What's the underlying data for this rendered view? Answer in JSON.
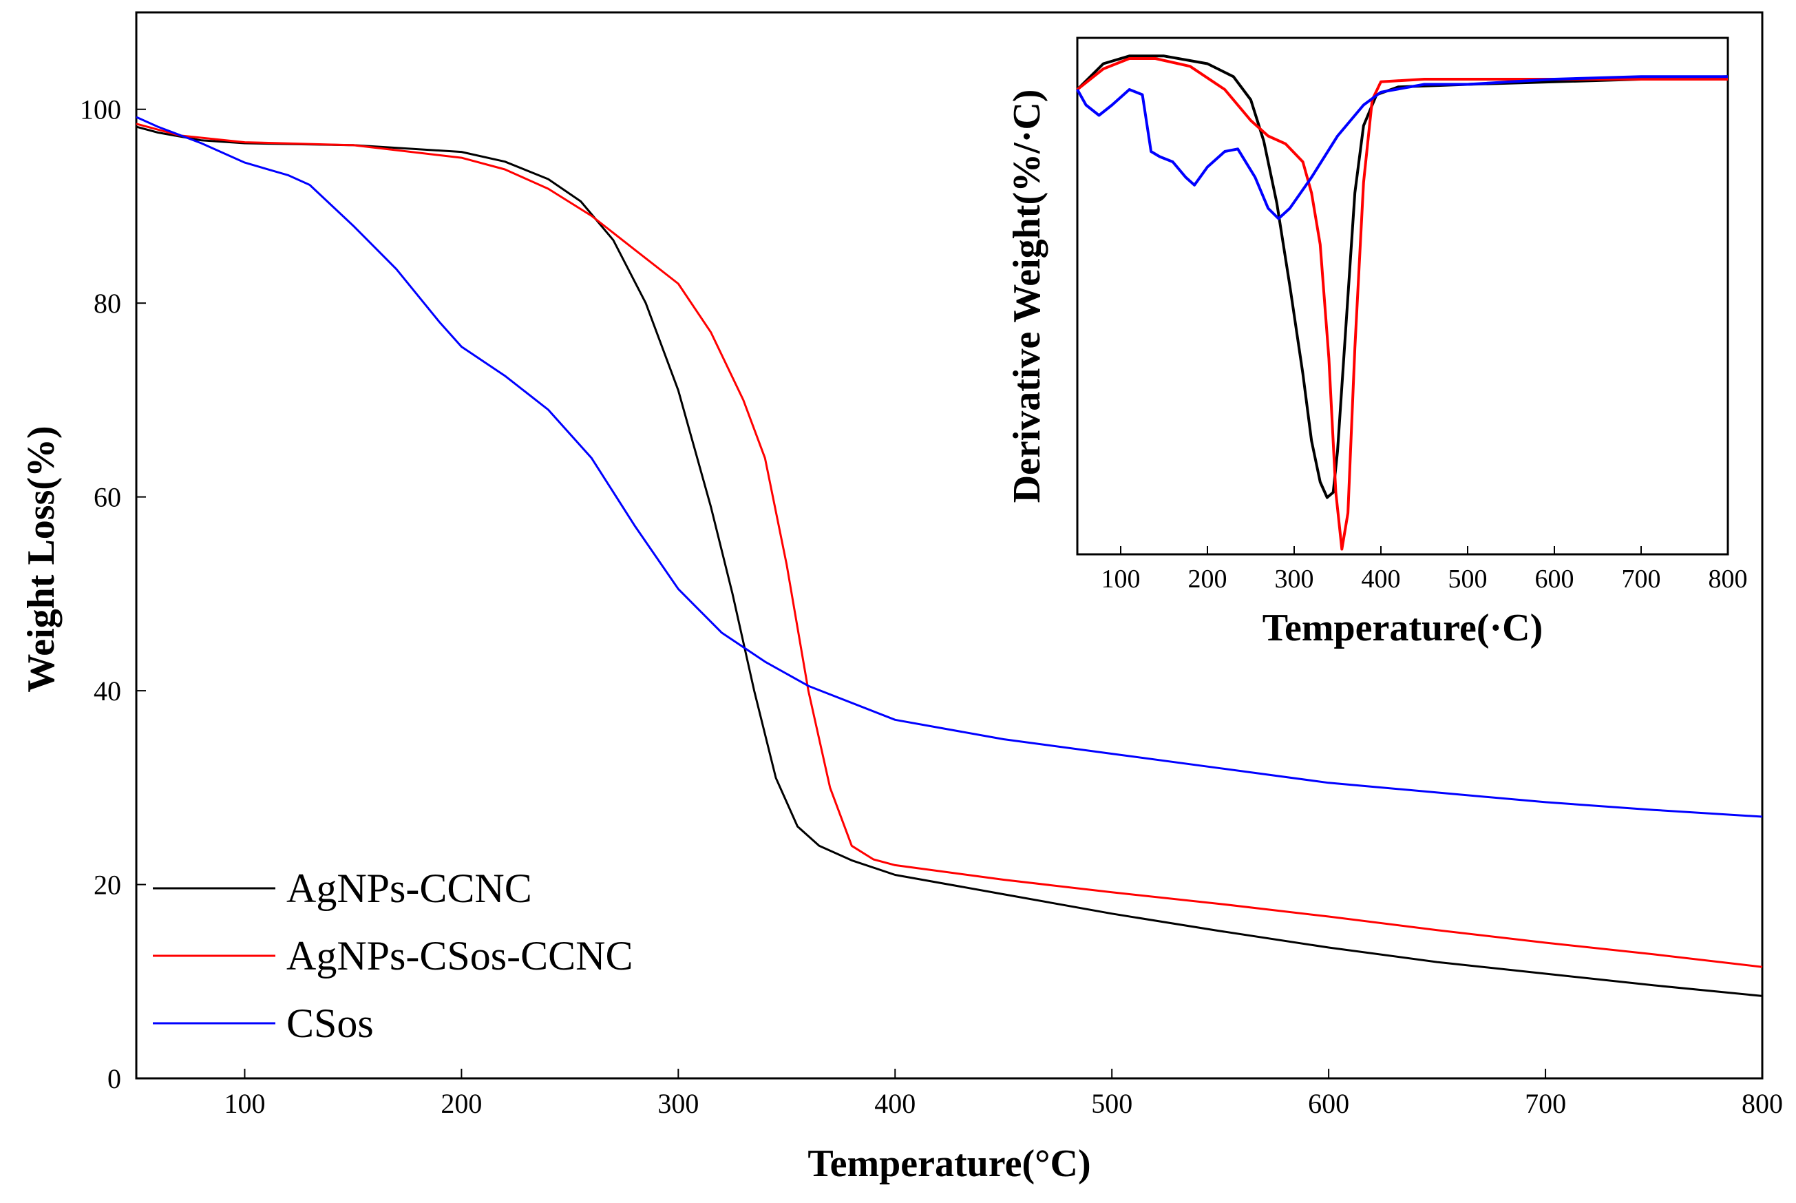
{
  "chart_data": [
    {
      "type": "line",
      "role": "main",
      "xlabel": "Temperature(°C)",
      "ylabel": "Weight Loss(%)",
      "xlim": [
        50,
        800
      ],
      "ylim": [
        0,
        110
      ],
      "xticks": [
        100,
        200,
        300,
        400,
        500,
        600,
        700,
        800
      ],
      "yticks": [
        0,
        20,
        40,
        60,
        80,
        100
      ],
      "legend_position": "bottom-left",
      "series": [
        {
          "name": "AgNPs-CCNC",
          "color": "#000000",
          "points": [
            [
              50,
              98.2
            ],
            [
              60,
              97.6
            ],
            [
              80,
              96.8
            ],
            [
              100,
              96.5
            ],
            [
              150,
              96.3
            ],
            [
              200,
              95.6
            ],
            [
              220,
              94.6
            ],
            [
              240,
              92.8
            ],
            [
              255,
              90.5
            ],
            [
              270,
              86.5
            ],
            [
              285,
              80
            ],
            [
              300,
              71
            ],
            [
              315,
              59
            ],
            [
              325,
              50
            ],
            [
              335,
              40
            ],
            [
              345,
              31
            ],
            [
              355,
              26
            ],
            [
              365,
              24
            ],
            [
              380,
              22.5
            ],
            [
              400,
              21
            ],
            [
              450,
              19
            ],
            [
              500,
              17
            ],
            [
              550,
              15.2
            ],
            [
              600,
              13.5
            ],
            [
              650,
              12
            ],
            [
              700,
              10.8
            ],
            [
              750,
              9.6
            ],
            [
              800,
              8.5
            ]
          ]
        },
        {
          "name": "AgNPs-CSos-CCNC",
          "color": "#ff0000",
          "points": [
            [
              50,
              98.5
            ],
            [
              70,
              97.3
            ],
            [
              100,
              96.6
            ],
            [
              150,
              96.3
            ],
            [
              200,
              95
            ],
            [
              220,
              93.8
            ],
            [
              240,
              91.8
            ],
            [
              260,
              89
            ],
            [
              280,
              85.5
            ],
            [
              300,
              82
            ],
            [
              315,
              77
            ],
            [
              330,
              70
            ],
            [
              340,
              64
            ],
            [
              350,
              53
            ],
            [
              360,
              40
            ],
            [
              370,
              30
            ],
            [
              380,
              24
            ],
            [
              390,
              22.6
            ],
            [
              400,
              22
            ],
            [
              450,
              20.5
            ],
            [
              500,
              19.2
            ],
            [
              550,
              18
            ],
            [
              600,
              16.7
            ],
            [
              650,
              15.3
            ],
            [
              700,
              14
            ],
            [
              750,
              12.8
            ],
            [
              800,
              11.5
            ]
          ]
        },
        {
          "name": "CSos",
          "color": "#0000ff",
          "points": [
            [
              50,
              99.2
            ],
            [
              60,
              98.2
            ],
            [
              80,
              96.5
            ],
            [
              100,
              94.5
            ],
            [
              120,
              93.2
            ],
            [
              130,
              92.2
            ],
            [
              150,
              88
            ],
            [
              170,
              83.5
            ],
            [
              190,
              78
            ],
            [
              200,
              75.5
            ],
            [
              220,
              72.5
            ],
            [
              240,
              69
            ],
            [
              260,
              64
            ],
            [
              280,
              57
            ],
            [
              300,
              50.5
            ],
            [
              320,
              46
            ],
            [
              340,
              43
            ],
            [
              360,
              40.5
            ],
            [
              400,
              37
            ],
            [
              450,
              35
            ],
            [
              500,
              33.5
            ],
            [
              550,
              32
            ],
            [
              600,
              30.5
            ],
            [
              650,
              29.5
            ],
            [
              700,
              28.5
            ],
            [
              750,
              27.7
            ],
            [
              800,
              27
            ]
          ]
        }
      ]
    },
    {
      "type": "line",
      "role": "inset",
      "xlabel": "Temperature(·C)",
      "ylabel": "Derivative Weight(%/·C)",
      "xlim": [
        50,
        800
      ],
      "ylim": [
        0,
        100
      ],
      "xticks": [
        100,
        200,
        300,
        400,
        500,
        600,
        700,
        800
      ],
      "yticks": [],
      "series": [
        {
          "name": "AgNPs-CCNC",
          "color": "#000000",
          "points": [
            [
              50,
              90
            ],
            [
              80,
              95
            ],
            [
              110,
              96.5
            ],
            [
              150,
              96.5
            ],
            [
              200,
              95
            ],
            [
              230,
              92.5
            ],
            [
              250,
              88
            ],
            [
              265,
              80
            ],
            [
              280,
              68
            ],
            [
              295,
              52
            ],
            [
              310,
              35
            ],
            [
              320,
              22
            ],
            [
              330,
              14
            ],
            [
              338,
              11
            ],
            [
              345,
              12
            ],
            [
              350,
              20
            ],
            [
              360,
              45
            ],
            [
              370,
              70
            ],
            [
              380,
              83
            ],
            [
              395,
              89
            ],
            [
              420,
              90.5
            ],
            [
              500,
              91
            ],
            [
              600,
              91.5
            ],
            [
              700,
              92
            ],
            [
              800,
              92.5
            ]
          ]
        },
        {
          "name": "AgNPs-CSos-CCNC",
          "color": "#ff0000",
          "points": [
            [
              50,
              90
            ],
            [
              80,
              94
            ],
            [
              110,
              96
            ],
            [
              140,
              96
            ],
            [
              180,
              94.5
            ],
            [
              220,
              90
            ],
            [
              250,
              84
            ],
            [
              270,
              81
            ],
            [
              290,
              79.5
            ],
            [
              310,
              76
            ],
            [
              320,
              70
            ],
            [
              330,
              60
            ],
            [
              340,
              38
            ],
            [
              348,
              12
            ],
            [
              355,
              1
            ],
            [
              362,
              8
            ],
            [
              370,
              40
            ],
            [
              380,
              72
            ],
            [
              390,
              88
            ],
            [
              400,
              91.5
            ],
            [
              450,
              92
            ],
            [
              600,
              92
            ],
            [
              800,
              92
            ]
          ]
        },
        {
          "name": "CSos",
          "color": "#0000ff",
          "points": [
            [
              50,
              90
            ],
            [
              60,
              87
            ],
            [
              75,
              85
            ],
            [
              90,
              87
            ],
            [
              110,
              90
            ],
            [
              125,
              89
            ],
            [
              135,
              78
            ],
            [
              145,
              77
            ],
            [
              160,
              76
            ],
            [
              175,
              73
            ],
            [
              185,
              71.5
            ],
            [
              200,
              75
            ],
            [
              220,
              78
            ],
            [
              235,
              78.5
            ],
            [
              255,
              73
            ],
            [
              270,
              67
            ],
            [
              282,
              65
            ],
            [
              295,
              67
            ],
            [
              320,
              73
            ],
            [
              350,
              81
            ],
            [
              380,
              87
            ],
            [
              400,
              89.5
            ],
            [
              450,
              91
            ],
            [
              500,
              91
            ],
            [
              600,
              92
            ],
            [
              700,
              92.5
            ],
            [
              800,
              92.5
            ]
          ]
        }
      ]
    }
  ]
}
